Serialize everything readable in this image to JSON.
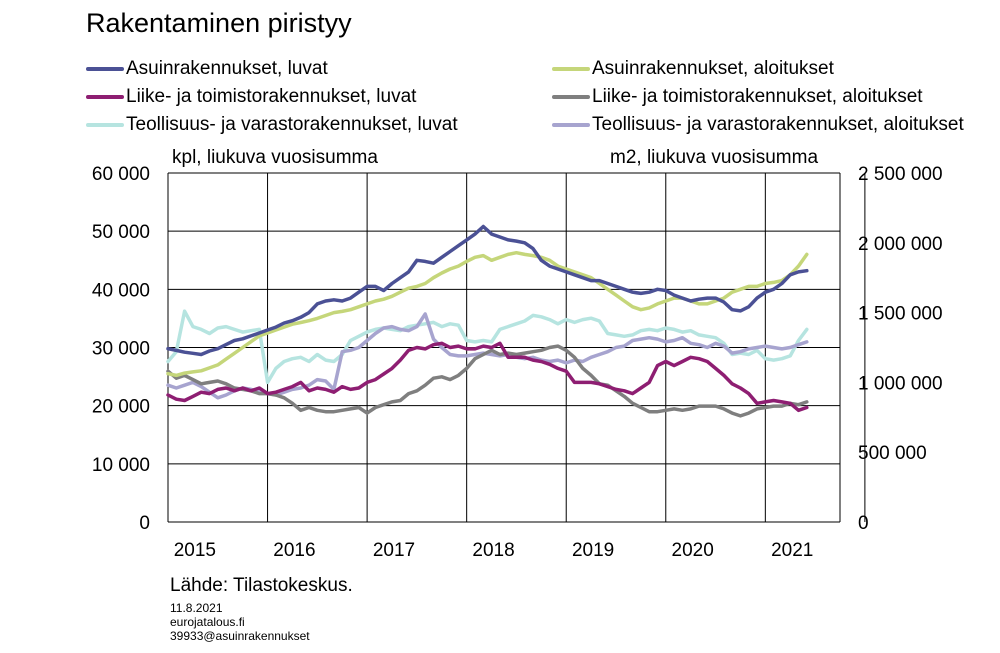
{
  "title": "Rakentaminen piristyy",
  "left_unit": "kpl, liukuva vuosisumma",
  "right_unit": "m2, liukuva vuosisumma",
  "source": "Lähde: Tilastokeskus.",
  "meta": {
    "date": "11.8.2021",
    "site": "eurojatalous.fi",
    "code": "39933@asuinrakennukset"
  },
  "chart_data": {
    "type": "line",
    "x_start": 2015.0,
    "x_step": 0.0833333,
    "xlim": [
      2015.0,
      2021.75
    ],
    "x_tick_labels": [
      "2015",
      "2016",
      "2017",
      "2018",
      "2019",
      "2020",
      "2021"
    ],
    "left_axis": {
      "ylim": [
        0,
        60000
      ],
      "ticks": [
        0,
        10000,
        20000,
        30000,
        40000,
        50000,
        60000
      ],
      "tick_labels": [
        "0",
        "10 000",
        "20 000",
        "30 000",
        "40 000",
        "50 000",
        "60 000"
      ]
    },
    "right_axis": {
      "ylim": [
        0,
        2500000
      ],
      "ticks": [
        0,
        500000,
        1000000,
        1500000,
        2000000,
        2500000
      ],
      "tick_labels": [
        "0",
        "500 000",
        "1 000 000",
        "1 500 000",
        "2 000 000",
        "2 500 000"
      ]
    },
    "grid": "horizontal",
    "legend": "top",
    "series": [
      {
        "name": "Asuinrakennukset, luvat",
        "axis": "left",
        "color": "#4B5195",
        "values": [
          29800,
          29500,
          29200,
          29000,
          28800,
          29400,
          29800,
          30500,
          31200,
          31500,
          32000,
          32500,
          33000,
          33500,
          34200,
          34600,
          35200,
          36000,
          37500,
          38000,
          38200,
          38000,
          38500,
          39500,
          40500,
          40500,
          39800,
          41000,
          42000,
          43000,
          45000,
          44800,
          44500,
          45500,
          46500,
          47500,
          48500,
          49500,
          50800,
          49500,
          49000,
          48500,
          48300,
          48000,
          47000,
          45000,
          44000,
          43500,
          43000,
          42500,
          42000,
          41500,
          41500,
          41000,
          40500,
          40000,
          39500,
          39300,
          39500,
          40000,
          39800,
          39000,
          38500,
          38000,
          38300,
          38500,
          38500,
          37800,
          36500,
          36300,
          37000,
          38500,
          39500,
          40000,
          41000,
          42500,
          43000,
          43200
        ]
      },
      {
        "name": "Asuinrakennukset, aloitukset",
        "axis": "left",
        "color": "#C5D67A",
        "values": [
          25500,
          25200,
          25600,
          25800,
          26000,
          26500,
          27000,
          28000,
          29000,
          30000,
          31000,
          32000,
          32500,
          33000,
          33500,
          34000,
          34300,
          34600,
          35000,
          35500,
          36000,
          36200,
          36500,
          37000,
          37500,
          38000,
          38300,
          38800,
          39500,
          40200,
          40500,
          41000,
          42000,
          42800,
          43500,
          44000,
          44800,
          45500,
          45800,
          45000,
          45500,
          46000,
          46300,
          46000,
          45800,
          45500,
          45000,
          44000,
          43500,
          43000,
          42500,
          42000,
          41000,
          40000,
          39000,
          38000,
          37000,
          36500,
          36800,
          37500,
          38000,
          38500,
          38500,
          38000,
          37500,
          37500,
          38000,
          38500,
          39500,
          40000,
          40500,
          40500,
          41000,
          41200,
          41500,
          42500,
          44000,
          46000
        ]
      },
      {
        "name": "Liike- ja toimistorakennukset, luvat",
        "axis": "right",
        "color": "#8E1E72",
        "values": [
          910000,
          880000,
          870000,
          900000,
          930000,
          920000,
          950000,
          960000,
          940000,
          960000,
          940000,
          960000,
          920000,
          930000,
          950000,
          970000,
          1000000,
          940000,
          960000,
          950000,
          930000,
          970000,
          950000,
          960000,
          1000000,
          1020000,
          1060000,
          1100000,
          1160000,
          1230000,
          1250000,
          1240000,
          1270000,
          1280000,
          1250000,
          1260000,
          1240000,
          1240000,
          1260000,
          1250000,
          1280000,
          1180000,
          1180000,
          1180000,
          1160000,
          1150000,
          1130000,
          1100000,
          1080000,
          1000000,
          1000000,
          1000000,
          990000,
          970000,
          950000,
          940000,
          920000,
          960000,
          1000000,
          1120000,
          1150000,
          1120000,
          1150000,
          1180000,
          1170000,
          1150000,
          1100000,
          1050000,
          990000,
          960000,
          920000,
          850000,
          860000,
          870000,
          860000,
          850000,
          800000,
          820000
        ]
      },
      {
        "name": "Liike- ja toimistorakennukset, aloitukset",
        "axis": "right",
        "color": "#7F7F7F",
        "values": [
          1080000,
          1030000,
          1050000,
          1020000,
          990000,
          1000000,
          1010000,
          990000,
          960000,
          950000,
          940000,
          920000,
          920000,
          910000,
          890000,
          850000,
          800000,
          820000,
          800000,
          790000,
          790000,
          800000,
          810000,
          820000,
          780000,
          820000,
          840000,
          860000,
          870000,
          920000,
          940000,
          980000,
          1030000,
          1040000,
          1020000,
          1050000,
          1100000,
          1170000,
          1200000,
          1230000,
          1200000,
          1210000,
          1200000,
          1210000,
          1220000,
          1230000,
          1250000,
          1260000,
          1230000,
          1180000,
          1100000,
          1050000,
          990000,
          980000,
          940000,
          900000,
          850000,
          820000,
          790000,
          790000,
          800000,
          810000,
          800000,
          810000,
          830000,
          830000,
          830000,
          810000,
          780000,
          760000,
          780000,
          810000,
          820000,
          830000,
          830000,
          850000,
          840000,
          860000
        ]
      },
      {
        "name": "Teollisuus- ja varastorakennukset, luvat",
        "axis": "right",
        "color": "#B6E4E0",
        "values": [
          1150000,
          1220000,
          1510000,
          1400000,
          1380000,
          1350000,
          1390000,
          1400000,
          1380000,
          1360000,
          1370000,
          1380000,
          1000000,
          1100000,
          1150000,
          1170000,
          1180000,
          1150000,
          1200000,
          1160000,
          1150000,
          1200000,
          1300000,
          1330000,
          1360000,
          1380000,
          1390000,
          1380000,
          1370000,
          1400000,
          1410000,
          1420000,
          1430000,
          1400000,
          1420000,
          1410000,
          1300000,
          1290000,
          1300000,
          1290000,
          1380000,
          1400000,
          1420000,
          1440000,
          1480000,
          1470000,
          1450000,
          1420000,
          1450000,
          1430000,
          1450000,
          1460000,
          1440000,
          1350000,
          1340000,
          1330000,
          1340000,
          1370000,
          1380000,
          1370000,
          1390000,
          1380000,
          1360000,
          1370000,
          1340000,
          1330000,
          1320000,
          1280000,
          1200000,
          1210000,
          1200000,
          1230000,
          1170000,
          1160000,
          1170000,
          1190000,
          1300000,
          1380000
        ]
      },
      {
        "name": "Teollisuus- ja varastorakennukset, aloitukset",
        "axis": "right",
        "color": "#A7A4CF",
        "values": [
          980000,
          960000,
          980000,
          1000000,
          970000,
          930000,
          890000,
          910000,
          940000,
          960000,
          950000,
          930000,
          920000,
          910000,
          930000,
          950000,
          960000,
          980000,
          1020000,
          1010000,
          950000,
          1220000,
          1230000,
          1250000,
          1300000,
          1350000,
          1390000,
          1400000,
          1380000,
          1370000,
          1400000,
          1490000,
          1310000,
          1250000,
          1200000,
          1190000,
          1190000,
          1200000,
          1210000,
          1200000,
          1190000,
          1200000,
          1180000,
          1170000,
          1180000,
          1160000,
          1150000,
          1160000,
          1140000,
          1160000,
          1150000,
          1180000,
          1200000,
          1220000,
          1250000,
          1260000,
          1300000,
          1310000,
          1320000,
          1310000,
          1290000,
          1300000,
          1320000,
          1280000,
          1270000,
          1250000,
          1280000,
          1260000,
          1210000,
          1220000,
          1240000,
          1250000,
          1260000,
          1250000,
          1240000,
          1250000,
          1270000,
          1290000
        ]
      }
    ]
  }
}
